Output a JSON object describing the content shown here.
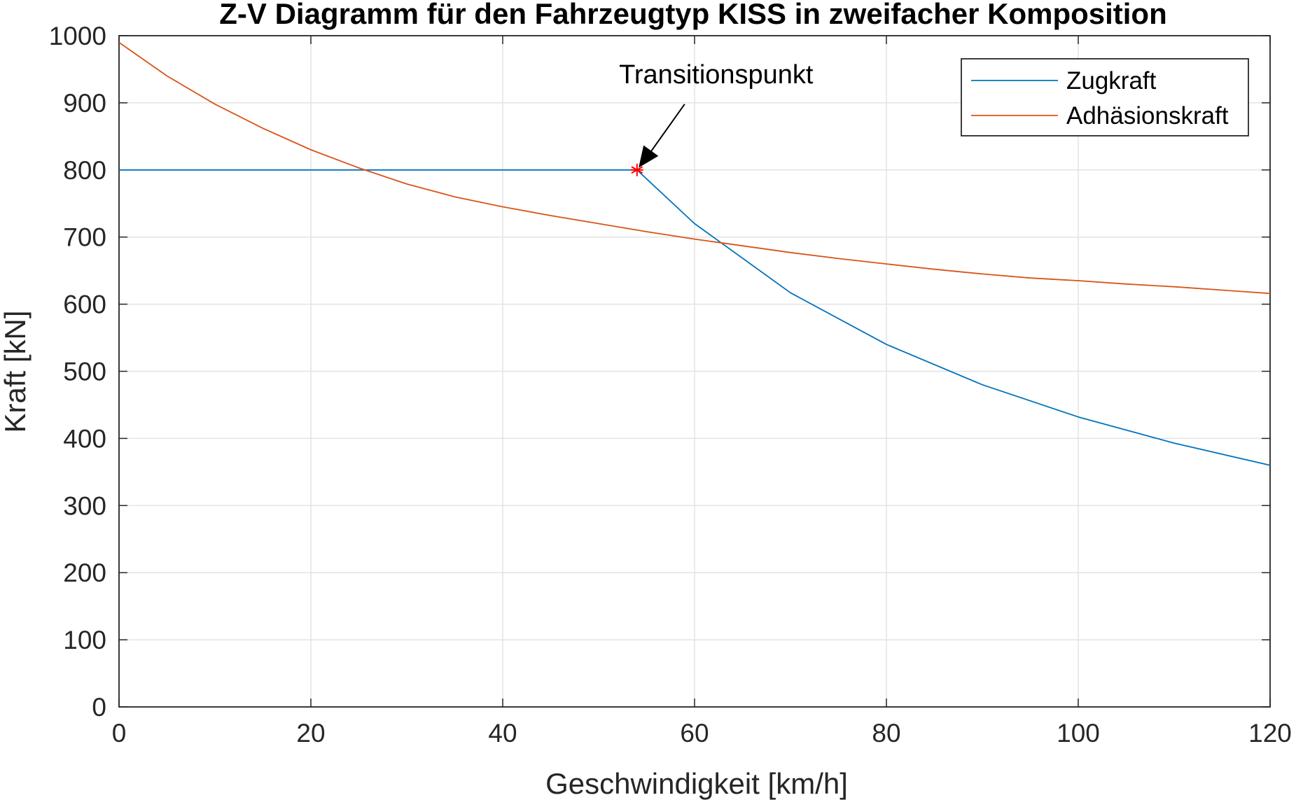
{
  "chart_data": {
    "type": "line",
    "title": "Z-V Diagramm für den Fahrzeugtyp KISS in zweifacher Komposition",
    "xlabel": "Geschwindigkeit [km/h]",
    "ylabel": "Kraft [kN]",
    "xlim": [
      0,
      120
    ],
    "ylim": [
      0,
      1000
    ],
    "xticks": [
      0,
      20,
      40,
      60,
      80,
      100,
      120
    ],
    "yticks": [
      0,
      100,
      200,
      300,
      400,
      500,
      600,
      700,
      800,
      900,
      1000
    ],
    "grid": true,
    "legend_position": "top-right",
    "series": [
      {
        "name": "Zugkraft",
        "color": "#0072BD",
        "x": [
          0,
          10,
          20,
          30,
          40,
          50,
          54,
          60,
          70,
          80,
          90,
          100,
          110,
          120
        ],
        "y": [
          800,
          800,
          800,
          800,
          800,
          800,
          800,
          720,
          617,
          540,
          480,
          432,
          393,
          360
        ]
      },
      {
        "name": "Adhäsionskraft",
        "color": "#D95319",
        "x": [
          0,
          5,
          10,
          15,
          20,
          25,
          30,
          35,
          40,
          45,
          50,
          55,
          60,
          65,
          70,
          75,
          80,
          85,
          90,
          95,
          100,
          105,
          110,
          115,
          120
        ],
        "y": [
          990,
          940,
          898,
          862,
          830,
          803,
          779,
          760,
          745,
          732,
          720,
          708,
          697,
          687,
          677,
          668,
          660,
          652,
          645,
          639,
          635,
          630,
          626,
          621,
          616
        ]
      }
    ],
    "annotations": [
      {
        "text": "Transitionspunkt",
        "x": 54,
        "y": 800,
        "marker": "*",
        "marker_color": "#FF0000"
      }
    ]
  }
}
